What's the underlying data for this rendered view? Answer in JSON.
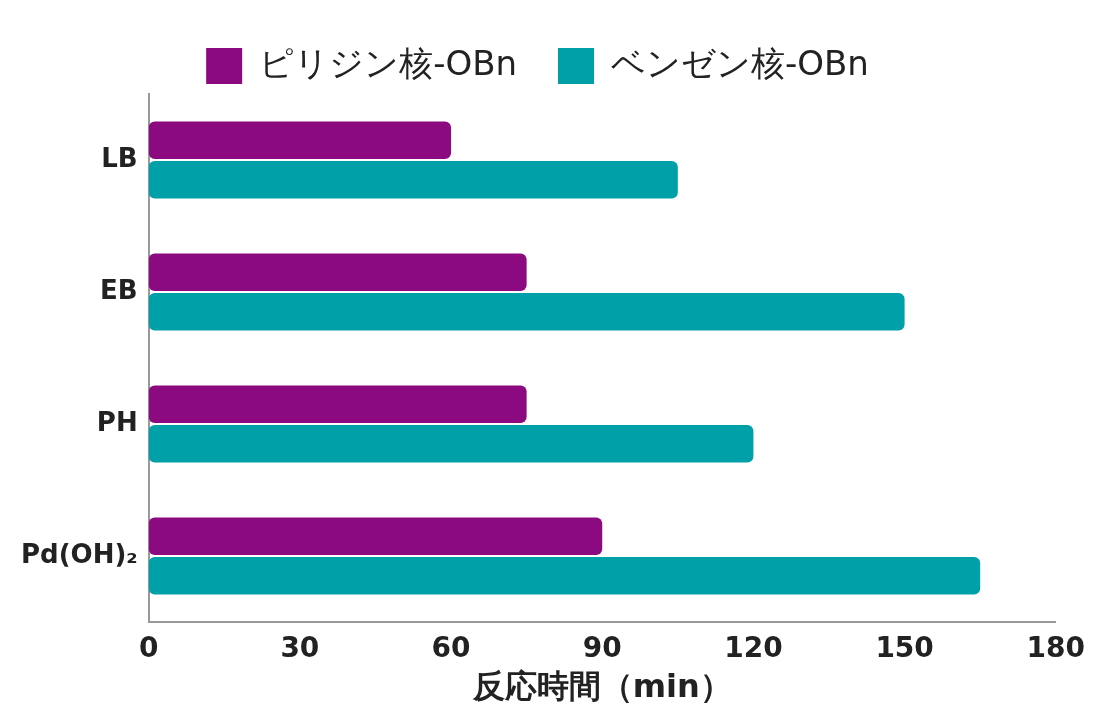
{
  "chart_data": {
    "type": "bar",
    "orientation": "horizontal",
    "categories": [
      "LB",
      "EB",
      "PH",
      "Pd(OH)₂"
    ],
    "series": [
      {
        "name": "ピリジン核-OBn",
        "color": "#8c0a80",
        "values": [
          60,
          75,
          75,
          90
        ]
      },
      {
        "name": "ベンゼン核-OBn",
        "color": "#00a0a8",
        "values": [
          105,
          150,
          120,
          165
        ]
      }
    ],
    "xlabel": "反応時間（min）",
    "xlim": [
      0,
      180
    ],
    "xticks": [
      0,
      30,
      60,
      90,
      120,
      150,
      180
    ],
    "grid": false,
    "legend": "top"
  }
}
